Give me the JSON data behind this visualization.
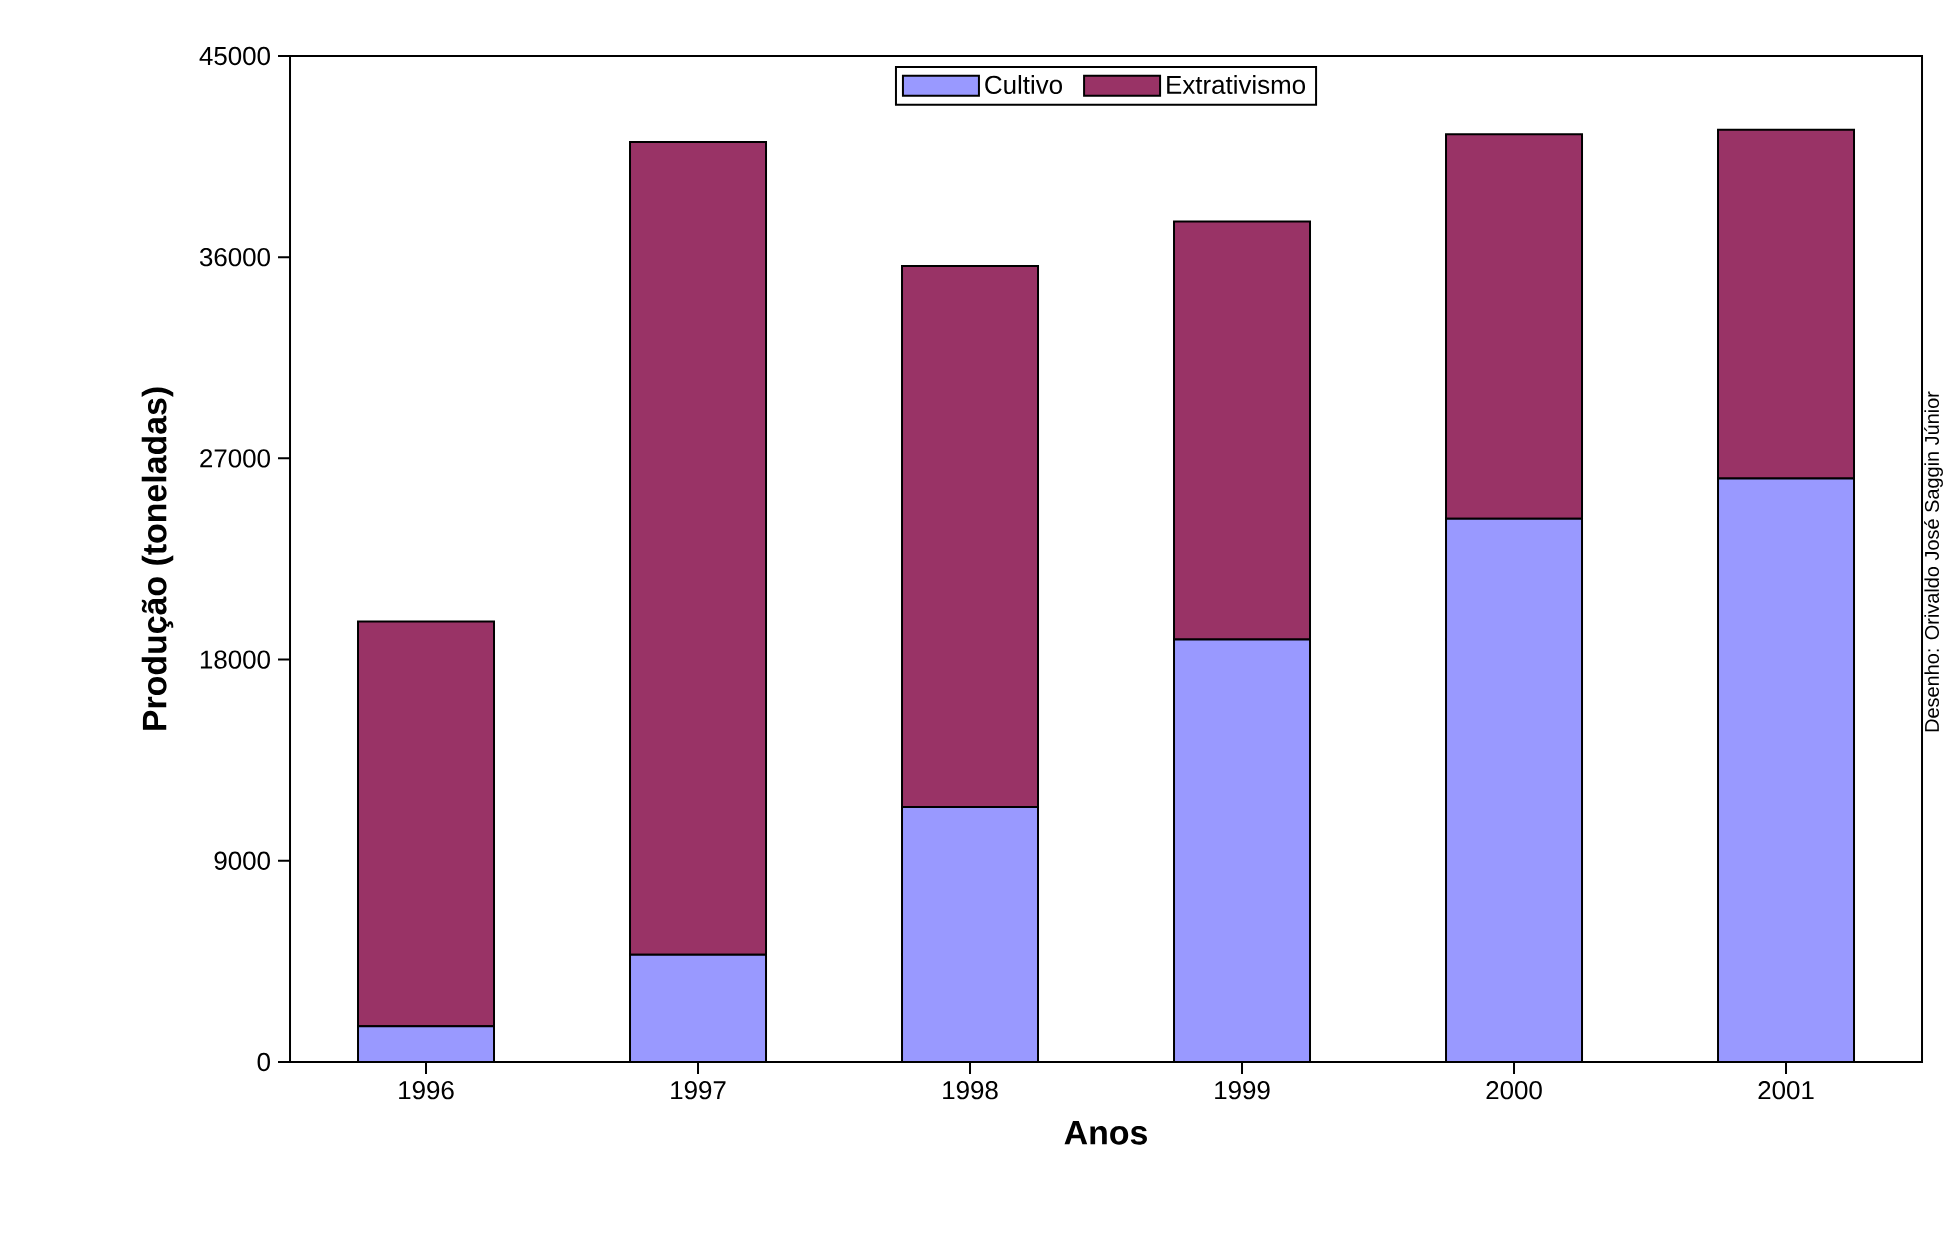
{
  "chart_data": {
    "type": "bar",
    "stacked": true,
    "xlabel": "Anos",
    "ylabel": "Produção (toneladas)",
    "categories": [
      "1996",
      "1997",
      "1998",
      "1999",
      "2000",
      "2001"
    ],
    "series": [
      {
        "name": "Cultivo",
        "color": "#9999ff",
        "values": [
          1600,
          4800,
          11400,
          18900,
          24300,
          26100
        ]
      },
      {
        "name": "Extrativismo",
        "color": "#993366",
        "values": [
          18100,
          36350,
          24200,
          18700,
          17200,
          15600
        ]
      }
    ],
    "ylim": [
      0,
      45000
    ],
    "yticks": [
      0,
      9000,
      18000,
      27000,
      36000,
      45000
    ],
    "grid": false,
    "legend": "top",
    "annotations": [
      "Desenho: Orivaldo José Saggin Júnior"
    ]
  }
}
